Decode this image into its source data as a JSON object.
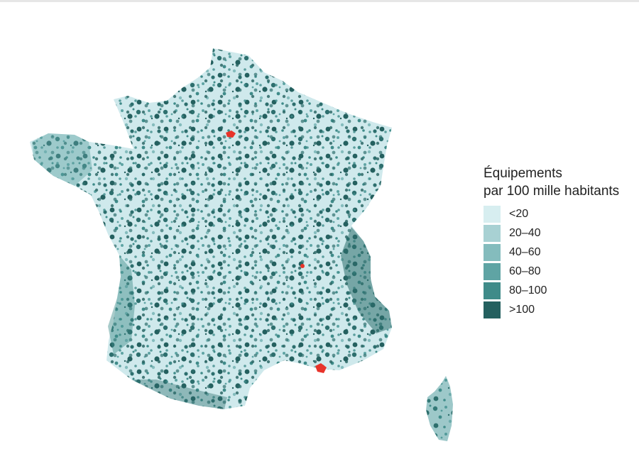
{
  "legend": {
    "title_line1": "Équipements",
    "title_line2": "par 100 mille habitants",
    "items": [
      {
        "label": "<20",
        "color": "#d7eef0"
      },
      {
        "label": "20–40",
        "color": "#a8d1d3"
      },
      {
        "label": "40–60",
        "color": "#84bcbd"
      },
      {
        "label": "60–80",
        "color": "#5fa4a4"
      },
      {
        "label": "80–100",
        "color": "#3f8b89"
      },
      {
        "label": ">100",
        "color": "#24605f"
      }
    ]
  },
  "highlight_color": "#e8332a",
  "highlighted_cities": [
    "paris",
    "lyon",
    "marseille"
  ]
}
